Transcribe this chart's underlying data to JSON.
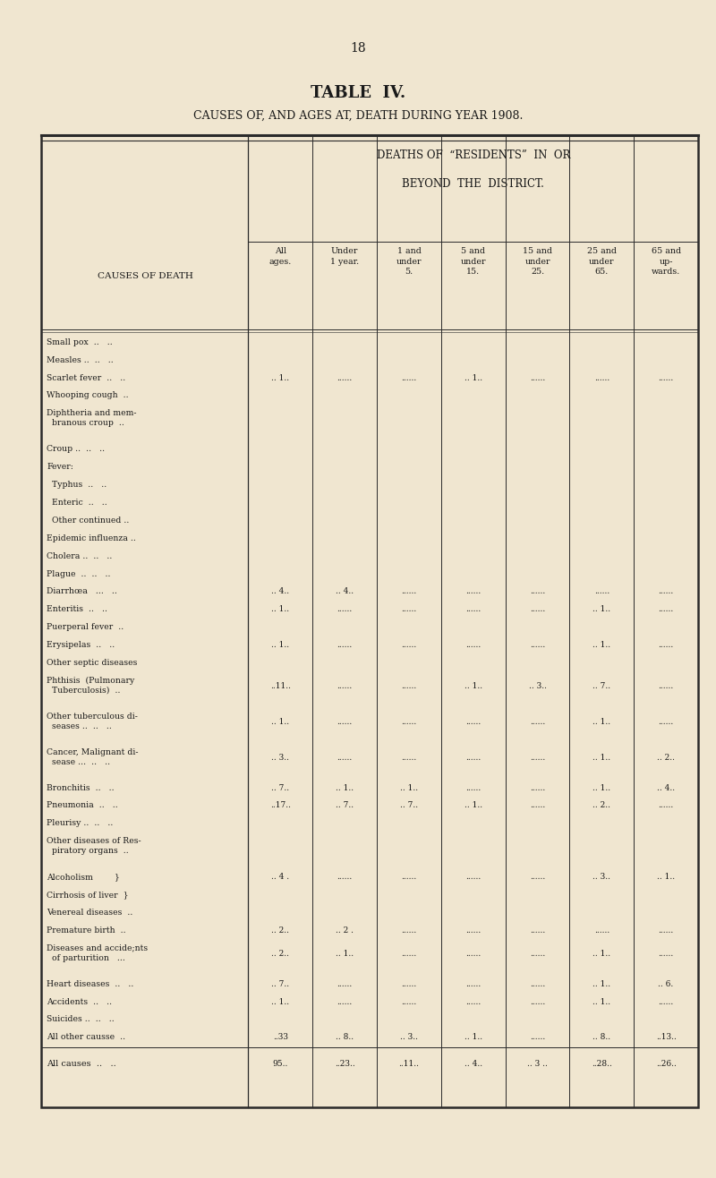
{
  "page_number": "18",
  "title1": "TABLE  IV.",
  "title2": "CAUSES OF, AND AGES AT, DEATH DURING YEAR 1908.",
  "background_color": "#f0e6d0",
  "text_color": "#1a1a1a",
  "col_headers": [
    "All\nages.",
    "Under\n1 year.",
    "1 and\nunder\n5.",
    "5 and\nunder\n15.",
    "15 and\nunder\n25.",
    "25 and\nunder\n65.",
    "65 and\nup-\nwards."
  ],
  "rows": [
    {
      "label": "Small pox  ..   ..",
      "v": [
        "",
        "",
        "",
        "",
        "",
        "",
        ""
      ],
      "indent": 0
    },
    {
      "label": "Measles ..  ..   ..",
      "v": [
        "",
        "",
        "",
        "",
        "",
        "",
        ""
      ],
      "indent": 0
    },
    {
      "label": "Scarlet fever  ..   ..",
      "v": [
        ".. 1..",
        "......",
        "......",
        ".. 1..",
        "......",
        "......",
        "......"
      ],
      "indent": 0
    },
    {
      "label": "Whooping cough  ..",
      "v": [
        "",
        "",
        "",
        "",
        "",
        "",
        ""
      ],
      "indent": 0
    },
    {
      "label": "Diphtheria and mem-",
      "v": [
        "",
        "",
        "",
        "",
        "",
        "",
        ""
      ],
      "indent": 0,
      "cont": "  branous croup  .."
    },
    {
      "label": "Croup ..  ..   ..",
      "v": [
        "",
        "",
        "",
        "",
        "",
        "",
        ""
      ],
      "indent": 0
    },
    {
      "label": "Fever:",
      "v": [
        "",
        "",
        "",
        "",
        "",
        "",
        ""
      ],
      "indent": 0
    },
    {
      "label": "  Typhus  ..   ..",
      "v": [
        "",
        "",
        "",
        "",
        "",
        "",
        ""
      ],
      "indent": 1
    },
    {
      "label": "  Enteric  ..   ..",
      "v": [
        "",
        "",
        "",
        "",
        "",
        "",
        ""
      ],
      "indent": 1
    },
    {
      "label": "  Other continued ..",
      "v": [
        "",
        "",
        "",
        "",
        "",
        "",
        ""
      ],
      "indent": 1
    },
    {
      "label": "Epidemic influenza ..",
      "v": [
        "",
        "",
        "",
        "",
        "",
        "",
        ""
      ],
      "indent": 0
    },
    {
      "label": "Cholera ..  ..   ..",
      "v": [
        "",
        "",
        "",
        "",
        "",
        "",
        ""
      ],
      "indent": 0
    },
    {
      "label": "Plague  ..  ..   ..",
      "v": [
        "",
        "",
        "",
        "",
        "",
        "",
        ""
      ],
      "indent": 0
    },
    {
      "label": "Diarrhœa   ...   ..",
      "v": [
        ".. 4..",
        ".. 4..",
        "......",
        "......",
        "......",
        "......",
        "......"
      ],
      "indent": 0
    },
    {
      "label": "Enteritis  ..   ..",
      "v": [
        ".. 1..",
        "......",
        "......",
        "......",
        "......",
        ".. 1..",
        "......"
      ],
      "indent": 0
    },
    {
      "label": "Puerperal fever  ..",
      "v": [
        "",
        "",
        "",
        "",
        "",
        "",
        ""
      ],
      "indent": 0
    },
    {
      "label": "Erysipelas  ..   ..",
      "v": [
        ".. 1..",
        "......",
        "......",
        "......",
        "......",
        ".. 1..",
        "......"
      ],
      "indent": 0
    },
    {
      "label": "Other septic diseases",
      "v": [
        "",
        "",
        "",
        "",
        "",
        "",
        ""
      ],
      "indent": 0
    },
    {
      "label": "Phthisis  (Pulmonary",
      "v": [
        "..11..",
        "......",
        "......",
        ".. 1..",
        ".. 3..",
        ".. 7..",
        "......"
      ],
      "indent": 0,
      "cont": "  Tuberculosis)  .."
    },
    {
      "label": "Other tuberculous di-",
      "v": [
        ".. 1..",
        "......",
        "......",
        "......",
        "......",
        ".. 1..",
        "......"
      ],
      "indent": 0,
      "cont": "  seases ..  ..   .."
    },
    {
      "label": "Cancer, Malignant di-",
      "v": [
        ".. 3..",
        "......",
        "......",
        "......",
        "......",
        ".. 1..",
        ".. 2.."
      ],
      "indent": 0,
      "cont": "  sease ...  ..   .."
    },
    {
      "label": "Bronchitis  ..   ..",
      "v": [
        ".. 7..",
        ".. 1..",
        ".. 1..",
        "......",
        "......",
        ".. 1..",
        ".. 4.."
      ],
      "indent": 0
    },
    {
      "label": "Pneumonia  ..   ..",
      "v": [
        "..17..",
        ".. 7..",
        ".. 7..",
        ".. 1..",
        "......",
        ".. 2..",
        "......"
      ],
      "indent": 0
    },
    {
      "label": "Pleurisy ..  ..   ..",
      "v": [
        "",
        "",
        "",
        "",
        "",
        "",
        ""
      ],
      "indent": 0
    },
    {
      "label": "Other diseases of Res-",
      "v": [
        "",
        "",
        "",
        "",
        "",
        "",
        ""
      ],
      "indent": 0,
      "cont": "  piratory organs  .."
    },
    {
      "label": "Alcoholism        }",
      "v": [
        ".. 4 .",
        "......",
        "......",
        "......",
        "......",
        ".. 3..",
        ".. 1.."
      ],
      "indent": 0,
      "brace": true
    },
    {
      "label": "Cirrhosis of liver  }",
      "v": [
        "",
        "",
        "",
        "",
        "",
        "",
        ""
      ],
      "indent": 0,
      "brace": true
    },
    {
      "label": "Venereal diseases  ..",
      "v": [
        "",
        "",
        "",
        "",
        "",
        "",
        ""
      ],
      "indent": 0
    },
    {
      "label": "Premature birth  ..",
      "v": [
        ".. 2..",
        ".. 2 .",
        "......",
        "......",
        "......",
        "......",
        "......"
      ],
      "indent": 0
    },
    {
      "label": "Diseases and accide;nts",
      "v": [
        ".. 2..",
        ".. 1..",
        "......",
        "......",
        "......",
        ".. 1..",
        "......"
      ],
      "indent": 0,
      "cont": "  of parturition   ..."
    },
    {
      "label": "Heart diseases  ..   ..",
      "v": [
        ".. 7..",
        "......",
        "......",
        "......",
        "......",
        ".. 1..",
        ".. 6."
      ],
      "indent": 0
    },
    {
      "label": "Accidents  ..   ..",
      "v": [
        ".. 1..",
        "......",
        "......",
        "......",
        "......",
        ".. 1..",
        "......"
      ],
      "indent": 0
    },
    {
      "label": "Suicides ..  ..   ..",
      "v": [
        "",
        "",
        "",
        "",
        "",
        "",
        ""
      ],
      "indent": 0
    },
    {
      "label": "All other causse  ..",
      "v": [
        "..33",
        ".. 8..",
        ".. 3..",
        ".. 1..",
        "......",
        ".. 8..",
        "..13.."
      ],
      "indent": 0
    },
    {
      "label": "SEP",
      "v": [],
      "separator": true
    },
    {
      "label": "All causes  ..   ..",
      "v": [
        "95..",
        "..23..",
        "..11..",
        ".. 4..",
        ".. 3 ..",
        "..28..",
        "..26.."
      ],
      "indent": 0,
      "total": true
    }
  ]
}
